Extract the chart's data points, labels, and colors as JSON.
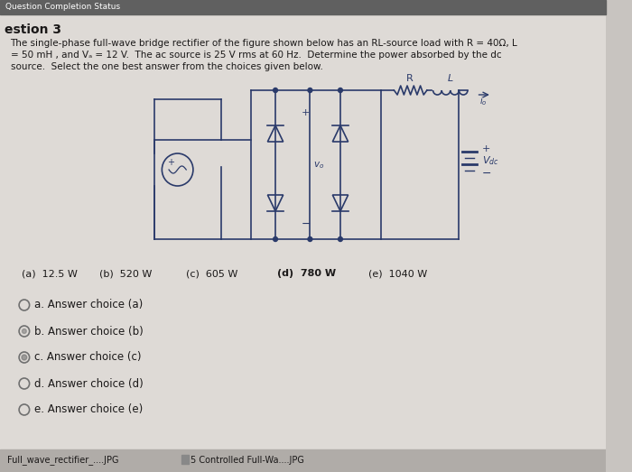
{
  "bg_color": "#c8c4c0",
  "content_bg": "#e8e4e0",
  "header_bar_color": "#606060",
  "header_text": "Question Completion Status",
  "question_title": "estion 3",
  "q_line1": "The single-phase full-wave bridge rectifier of the figure shown below has an RL-source load with R = 40Ω, L",
  "q_line2": "= 50 mH , and Vₐ = 12 V.  The ac source is 25 V rms at 60 Hz.  Determine the power absorbed by the dc",
  "q_line3": "source.  Select the one best answer from the choices given below.",
  "choice_a": "(a)  12.5 W",
  "choice_b": "(b)  520 W",
  "choice_c": "(c)  605 W",
  "choice_d": "(d)  780 W",
  "choice_e": "(e)  1040 W",
  "answer_choices": [
    "a. Answer choice (a)",
    "b. Answer choice (b)",
    "c. Answer choice (c)",
    "d. Answer choice (d)",
    "e. Answer choice (e)"
  ],
  "footer_left": "Full_wave_rectifier_....JPG",
  "footer_right": "5 Controlled Full-Wa....JPG",
  "text_color": "#1a1818",
  "circuit_color": "#2a3a6a",
  "circle_color": "#707070",
  "footer_color": "#b0aca8"
}
